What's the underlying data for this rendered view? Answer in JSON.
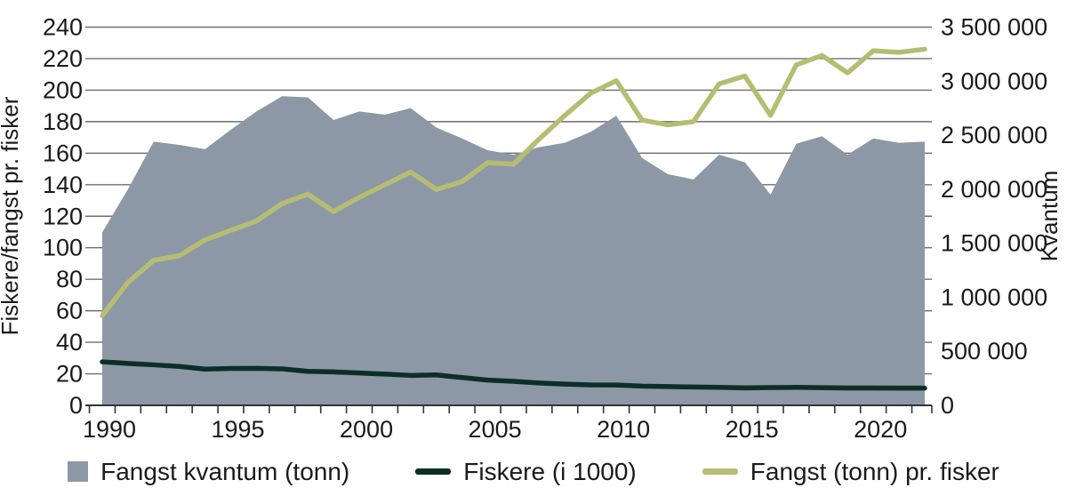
{
  "chart_data": {
    "type": "area",
    "description": "Combination chart: area series on right axis (Kvantum) and two line series on left axis",
    "x": [
      1990,
      1991,
      1992,
      1993,
      1994,
      1995,
      1996,
      1997,
      1998,
      1999,
      2000,
      2001,
      2002,
      2003,
      2004,
      2005,
      2006,
      2007,
      2008,
      2009,
      2010,
      2011,
      2012,
      2013,
      2014,
      2015,
      2016,
      2017,
      2018,
      2019,
      2020,
      2021,
      2022
    ],
    "series": [
      {
        "name": "Fangst kvantum (tonn)",
        "type": "area",
        "axis": "right",
        "color": "#8D98A7",
        "values": [
          1600000,
          2000000,
          2440000,
          2410000,
          2370000,
          2550000,
          2720000,
          2860000,
          2850000,
          2640000,
          2720000,
          2690000,
          2750000,
          2570000,
          2470000,
          2360000,
          2320000,
          2390000,
          2430000,
          2530000,
          2680000,
          2290000,
          2140000,
          2090000,
          2320000,
          2250000,
          1950000,
          2420000,
          2490000,
          2320000,
          2470000,
          2430000,
          2440000
        ]
      },
      {
        "name": "Fiskere (i 1000)",
        "type": "line",
        "axis": "left",
        "color": "#0C2F25",
        "values": [
          27.6,
          26.6,
          25.7,
          24.7,
          23.0,
          23.4,
          23.5,
          23.1,
          21.6,
          21.2,
          20.5,
          19.8,
          19.0,
          19.3,
          17.6,
          16.0,
          15.2,
          14.2,
          13.5,
          13.0,
          12.9,
          12.2,
          11.9,
          11.6,
          11.4,
          11.1,
          11.3,
          11.4,
          11.2,
          11.0,
          11.0,
          10.9,
          10.9
        ]
      },
      {
        "name": "Fangst (tonn) pr. fisker",
        "type": "line",
        "axis": "left",
        "color": "#B6BD72",
        "values": [
          57,
          78,
          92,
          95,
          105,
          111,
          117,
          128,
          134,
          123,
          132,
          140,
          148,
          137,
          142,
          154,
          153,
          169,
          184,
          198,
          206,
          181,
          178,
          180,
          204,
          209,
          184,
          216,
          222,
          211,
          225,
          224,
          226
        ]
      }
    ],
    "left_axis": {
      "title": "Fiskere/fangst pr. fisker",
      "min": 0,
      "max": 240,
      "tick_step": 20,
      "tick_labels": [
        "0",
        "20",
        "40",
        "60",
        "80",
        "100",
        "120",
        "140",
        "160",
        "180",
        "200",
        "220",
        "240"
      ]
    },
    "right_axis": {
      "title": "Kvantum",
      "min": 0,
      "max": 3500000,
      "tick_values": [
        0,
        500000,
        1000000,
        1500000,
        2000000,
        2500000,
        3000000,
        3500000
      ],
      "tick_labels": [
        "0",
        "500 000",
        "1 000 000",
        "1 500 000",
        "2 000 000",
        "2 500 000",
        "3 000 000",
        "3 500 000"
      ]
    },
    "x_axis": {
      "tick_label_years": [
        1990,
        1995,
        2000,
        2005,
        2010,
        2015,
        2020
      ],
      "minor_ticks_every_year": true
    },
    "grid": "horizontal",
    "legend_position": "bottom"
  }
}
